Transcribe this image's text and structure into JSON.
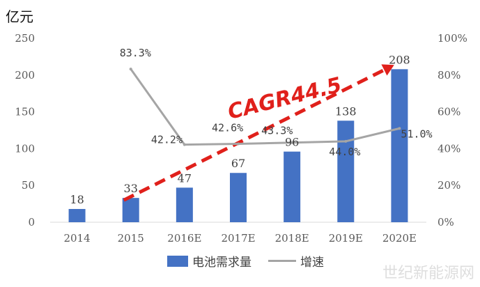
{
  "chart_data": {
    "type": "bar",
    "unit_label": "亿元",
    "categories": [
      "2014",
      "2015",
      "2016E",
      "2017E",
      "2018E",
      "2019E",
      "2020E"
    ],
    "series": [
      {
        "name": "电池需求量",
        "type": "bar",
        "axis": "left",
        "color": "#4472c4",
        "values": [
          18,
          33,
          47,
          67,
          96,
          138,
          208
        ],
        "labels": [
          "18",
          "33",
          "47",
          "67",
          "96",
          "138",
          "208"
        ]
      },
      {
        "name": "增速",
        "type": "line",
        "axis": "right",
        "color": "#a5a5a5",
        "values": [
          null,
          83.3,
          42.2,
          42.6,
          43.3,
          44.0,
          51.0
        ],
        "labels": [
          "",
          "83.3%",
          "42.2%",
          "42.6%",
          "43.3%",
          "44.0%",
          "51.0%"
        ]
      }
    ],
    "y_left": {
      "min": 0,
      "max": 250,
      "ticks": [
        0,
        50,
        100,
        150,
        200,
        250
      ]
    },
    "y_right": {
      "min": 0,
      "max": 100,
      "ticks": [
        "0%",
        "20%",
        "40%",
        "60%",
        "80%",
        "100%"
      ]
    },
    "annotation": {
      "text": "CAGR44.5",
      "color": "#e0201b"
    },
    "legend_position": "bottom",
    "grid": false
  },
  "watermark": "世纪新能源网"
}
